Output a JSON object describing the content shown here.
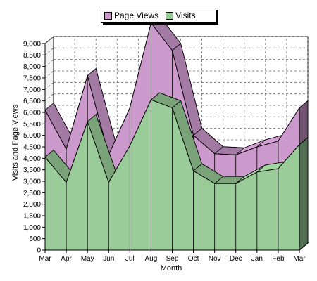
{
  "chart_data": {
    "type": "area",
    "title": "",
    "xlabel": "Month",
    "ylabel": "Visits and Page Views",
    "ylim": [
      0,
      9000
    ],
    "yticks": [
      0,
      500,
      1000,
      1500,
      2000,
      2500,
      3000,
      3500,
      4000,
      4500,
      5000,
      5500,
      6000,
      6500,
      7000,
      7500,
      8000,
      8500,
      9000
    ],
    "ytick_labels": [
      "0",
      "500",
      "1,000",
      "1,500",
      "2,000",
      "2,500",
      "3,000",
      "3,500",
      "4,000",
      "4,500",
      "5,000",
      "5,500",
      "6,000",
      "6,500",
      "7,000",
      "7,500",
      "8,000",
      "8,500",
      "9,000"
    ],
    "categories": [
      "Mar",
      "Apr",
      "May",
      "Jun",
      "Jul",
      "Aug",
      "Sep",
      "Oct",
      "Nov",
      "Dec",
      "Jan",
      "Feb",
      "Mar"
    ],
    "grid": true,
    "stacked_3d": true,
    "legend": {
      "placement": "top-center",
      "entries": [
        "Page Views",
        "Visits"
      ]
    },
    "series": [
      {
        "name": "Page Views",
        "color": "#CC99CC",
        "values": [
          6100,
          4400,
          7600,
          4150,
          6200,
          9900,
          8700,
          5000,
          4200,
          4150,
          4500,
          4750,
          6200
        ]
      },
      {
        "name": "Visits",
        "color": "#99CC99",
        "values": [
          4050,
          2950,
          5600,
          2950,
          4550,
          6550,
          6200,
          3450,
          2900,
          2900,
          3400,
          3550,
          4600
        ]
      }
    ]
  }
}
